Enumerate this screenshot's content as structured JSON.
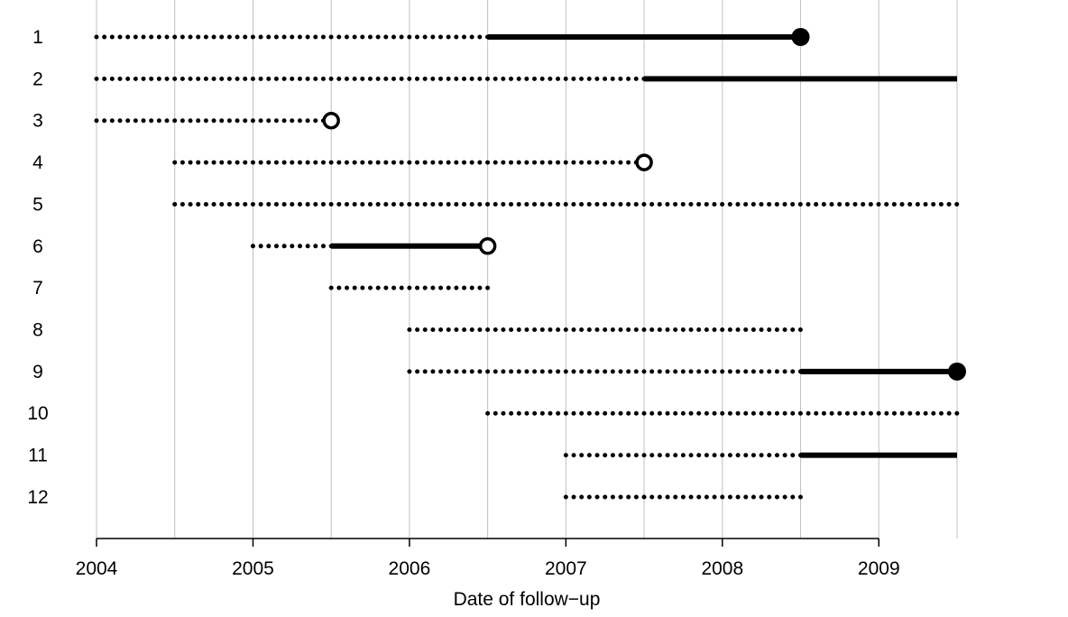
{
  "chart_data": {
    "type": "line",
    "title": "",
    "xlabel": "Date of follow−up",
    "ylabel": "",
    "xlim": [
      2004,
      2009.5
    ],
    "x_ticks": [
      {
        "value": 2004,
        "label": "2004"
      },
      {
        "value": 2005,
        "label": "2005"
      },
      {
        "value": 2006,
        "label": "2006"
      },
      {
        "value": 2007,
        "label": "2007"
      },
      {
        "value": 2008,
        "label": "2008"
      },
      {
        "value": 2009,
        "label": "2009"
      }
    ],
    "grid": {
      "vertical_lines_at": [
        2004,
        2004.5,
        2005,
        2005.5,
        2006,
        2006.5,
        2007,
        2007.5,
        2008,
        2008.5,
        2009,
        2009.5
      ]
    },
    "colors": {
      "line": "#000000",
      "grid": "#c0c0c0",
      "axis": "#000000"
    },
    "subjects": [
      {
        "label": "1",
        "dotted": [
          2004.0,
          2006.5
        ],
        "solid": [
          2006.5,
          2008.5
        ],
        "end_marker": "filled"
      },
      {
        "label": "2",
        "dotted": [
          2004.0,
          2007.5
        ],
        "solid": [
          2007.5,
          2009.5
        ],
        "end_marker": "none"
      },
      {
        "label": "3",
        "dotted": [
          2004.0,
          2005.5
        ],
        "solid": null,
        "end_marker": "open"
      },
      {
        "label": "4",
        "dotted": [
          2004.5,
          2007.5
        ],
        "solid": null,
        "end_marker": "open"
      },
      {
        "label": "5",
        "dotted": [
          2004.5,
          2009.5
        ],
        "solid": null,
        "end_marker": "none"
      },
      {
        "label": "6",
        "dotted": [
          2005.0,
          2005.5
        ],
        "solid": [
          2005.5,
          2006.5
        ],
        "end_marker": "open"
      },
      {
        "label": "7",
        "dotted": [
          2005.5,
          2006.5
        ],
        "solid": null,
        "end_marker": "none"
      },
      {
        "label": "8",
        "dotted": [
          2006.0,
          2008.5
        ],
        "solid": null,
        "end_marker": "none"
      },
      {
        "label": "9",
        "dotted": [
          2006.0,
          2008.5
        ],
        "solid": [
          2008.5,
          2009.5
        ],
        "end_marker": "filled"
      },
      {
        "label": "10",
        "dotted": [
          2006.5,
          2009.5
        ],
        "solid": null,
        "end_marker": "none"
      },
      {
        "label": "11",
        "dotted": [
          2007.0,
          2008.5
        ],
        "solid": [
          2008.5,
          2009.5
        ],
        "end_marker": "none"
      },
      {
        "label": "12",
        "dotted": [
          2007.0,
          2008.5
        ],
        "solid": null,
        "end_marker": "none"
      }
    ]
  }
}
